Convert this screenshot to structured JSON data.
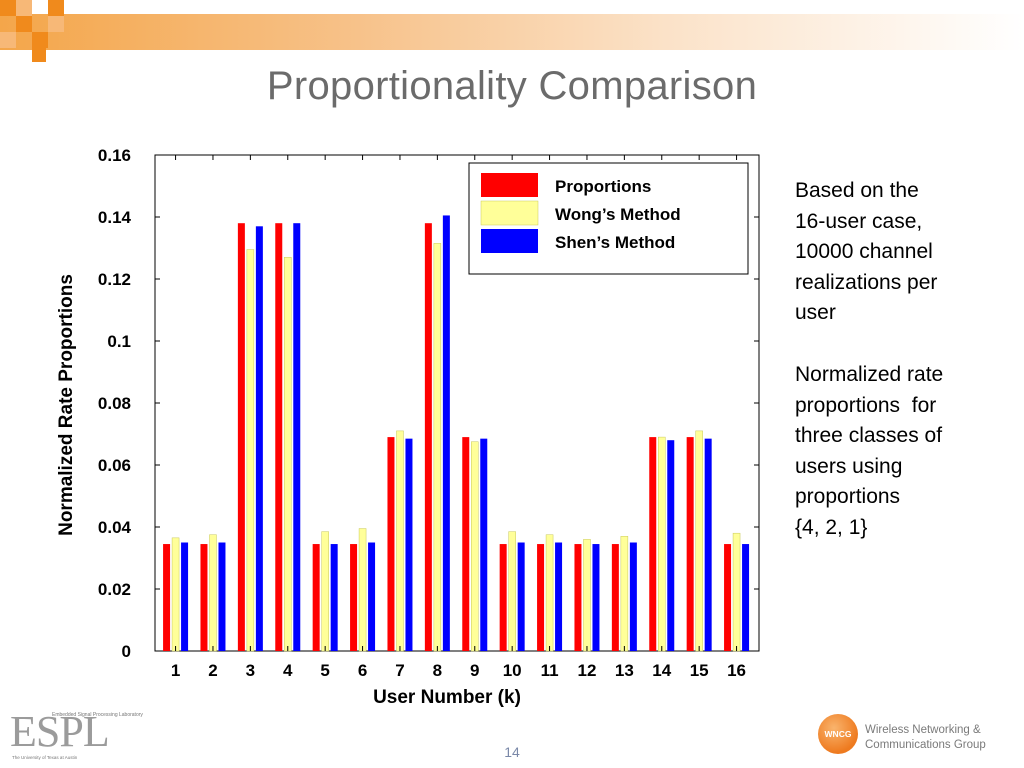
{
  "slide": {
    "title": "Proportionality Comparison",
    "page_number": "14",
    "accent_color": "#f08a1c",
    "title_color": "#6b6b6b"
  },
  "side_text": {
    "block1": [
      "Based on the",
      "16-user case,",
      "10000 channel",
      "realizations per",
      "user"
    ],
    "block2": [
      "Normalized rate",
      "proportions  for",
      "three classes of",
      "users using",
      "proportions",
      "{4, 2, 1}"
    ]
  },
  "logos": {
    "espl": {
      "letters": "ESPL",
      "subtitle": "Embedded Signal Processing Laboratory",
      "university": "The University of Texas at Austin"
    },
    "wncg": {
      "badge": "WNCG",
      "line1": "Wireless Networking &",
      "line2": "Communications Group"
    }
  },
  "chart_data": {
    "type": "bar",
    "xlabel": "User Number (k)",
    "ylabel": "Normalized Rate Proportions",
    "categories": [
      "1",
      "2",
      "3",
      "4",
      "5",
      "6",
      "7",
      "8",
      "9",
      "10",
      "11",
      "12",
      "13",
      "14",
      "15",
      "16"
    ],
    "ylim": [
      0,
      0.16
    ],
    "yticks": [
      0,
      0.02,
      0.04,
      0.06,
      0.08,
      0.1,
      0.12,
      0.14,
      0.16
    ],
    "ytick_labels": [
      "0",
      "0.02",
      "0.04",
      "0.06",
      "0.08",
      "0.1",
      "0.12",
      "0.14",
      "0.16"
    ],
    "legend_position": "top-right",
    "grid": false,
    "series": [
      {
        "name": "Proportions",
        "color": "#ff0000",
        "values": [
          0.0345,
          0.0345,
          0.138,
          0.138,
          0.0345,
          0.0345,
          0.069,
          0.138,
          0.069,
          0.0345,
          0.0345,
          0.0345,
          0.0345,
          0.069,
          0.069,
          0.0345
        ]
      },
      {
        "name": "Wong’s Method",
        "color": "#ffff99",
        "values": [
          0.0365,
          0.0375,
          0.1295,
          0.127,
          0.0385,
          0.0395,
          0.071,
          0.1315,
          0.0675,
          0.0385,
          0.0375,
          0.036,
          0.037,
          0.069,
          0.071,
          0.038
        ]
      },
      {
        "name": "Shen’s Method",
        "color": "#0000ff",
        "values": [
          0.035,
          0.035,
          0.137,
          0.138,
          0.0345,
          0.035,
          0.0685,
          0.1405,
          0.0685,
          0.035,
          0.035,
          0.0345,
          0.035,
          0.068,
          0.0685,
          0.0345
        ]
      }
    ]
  }
}
